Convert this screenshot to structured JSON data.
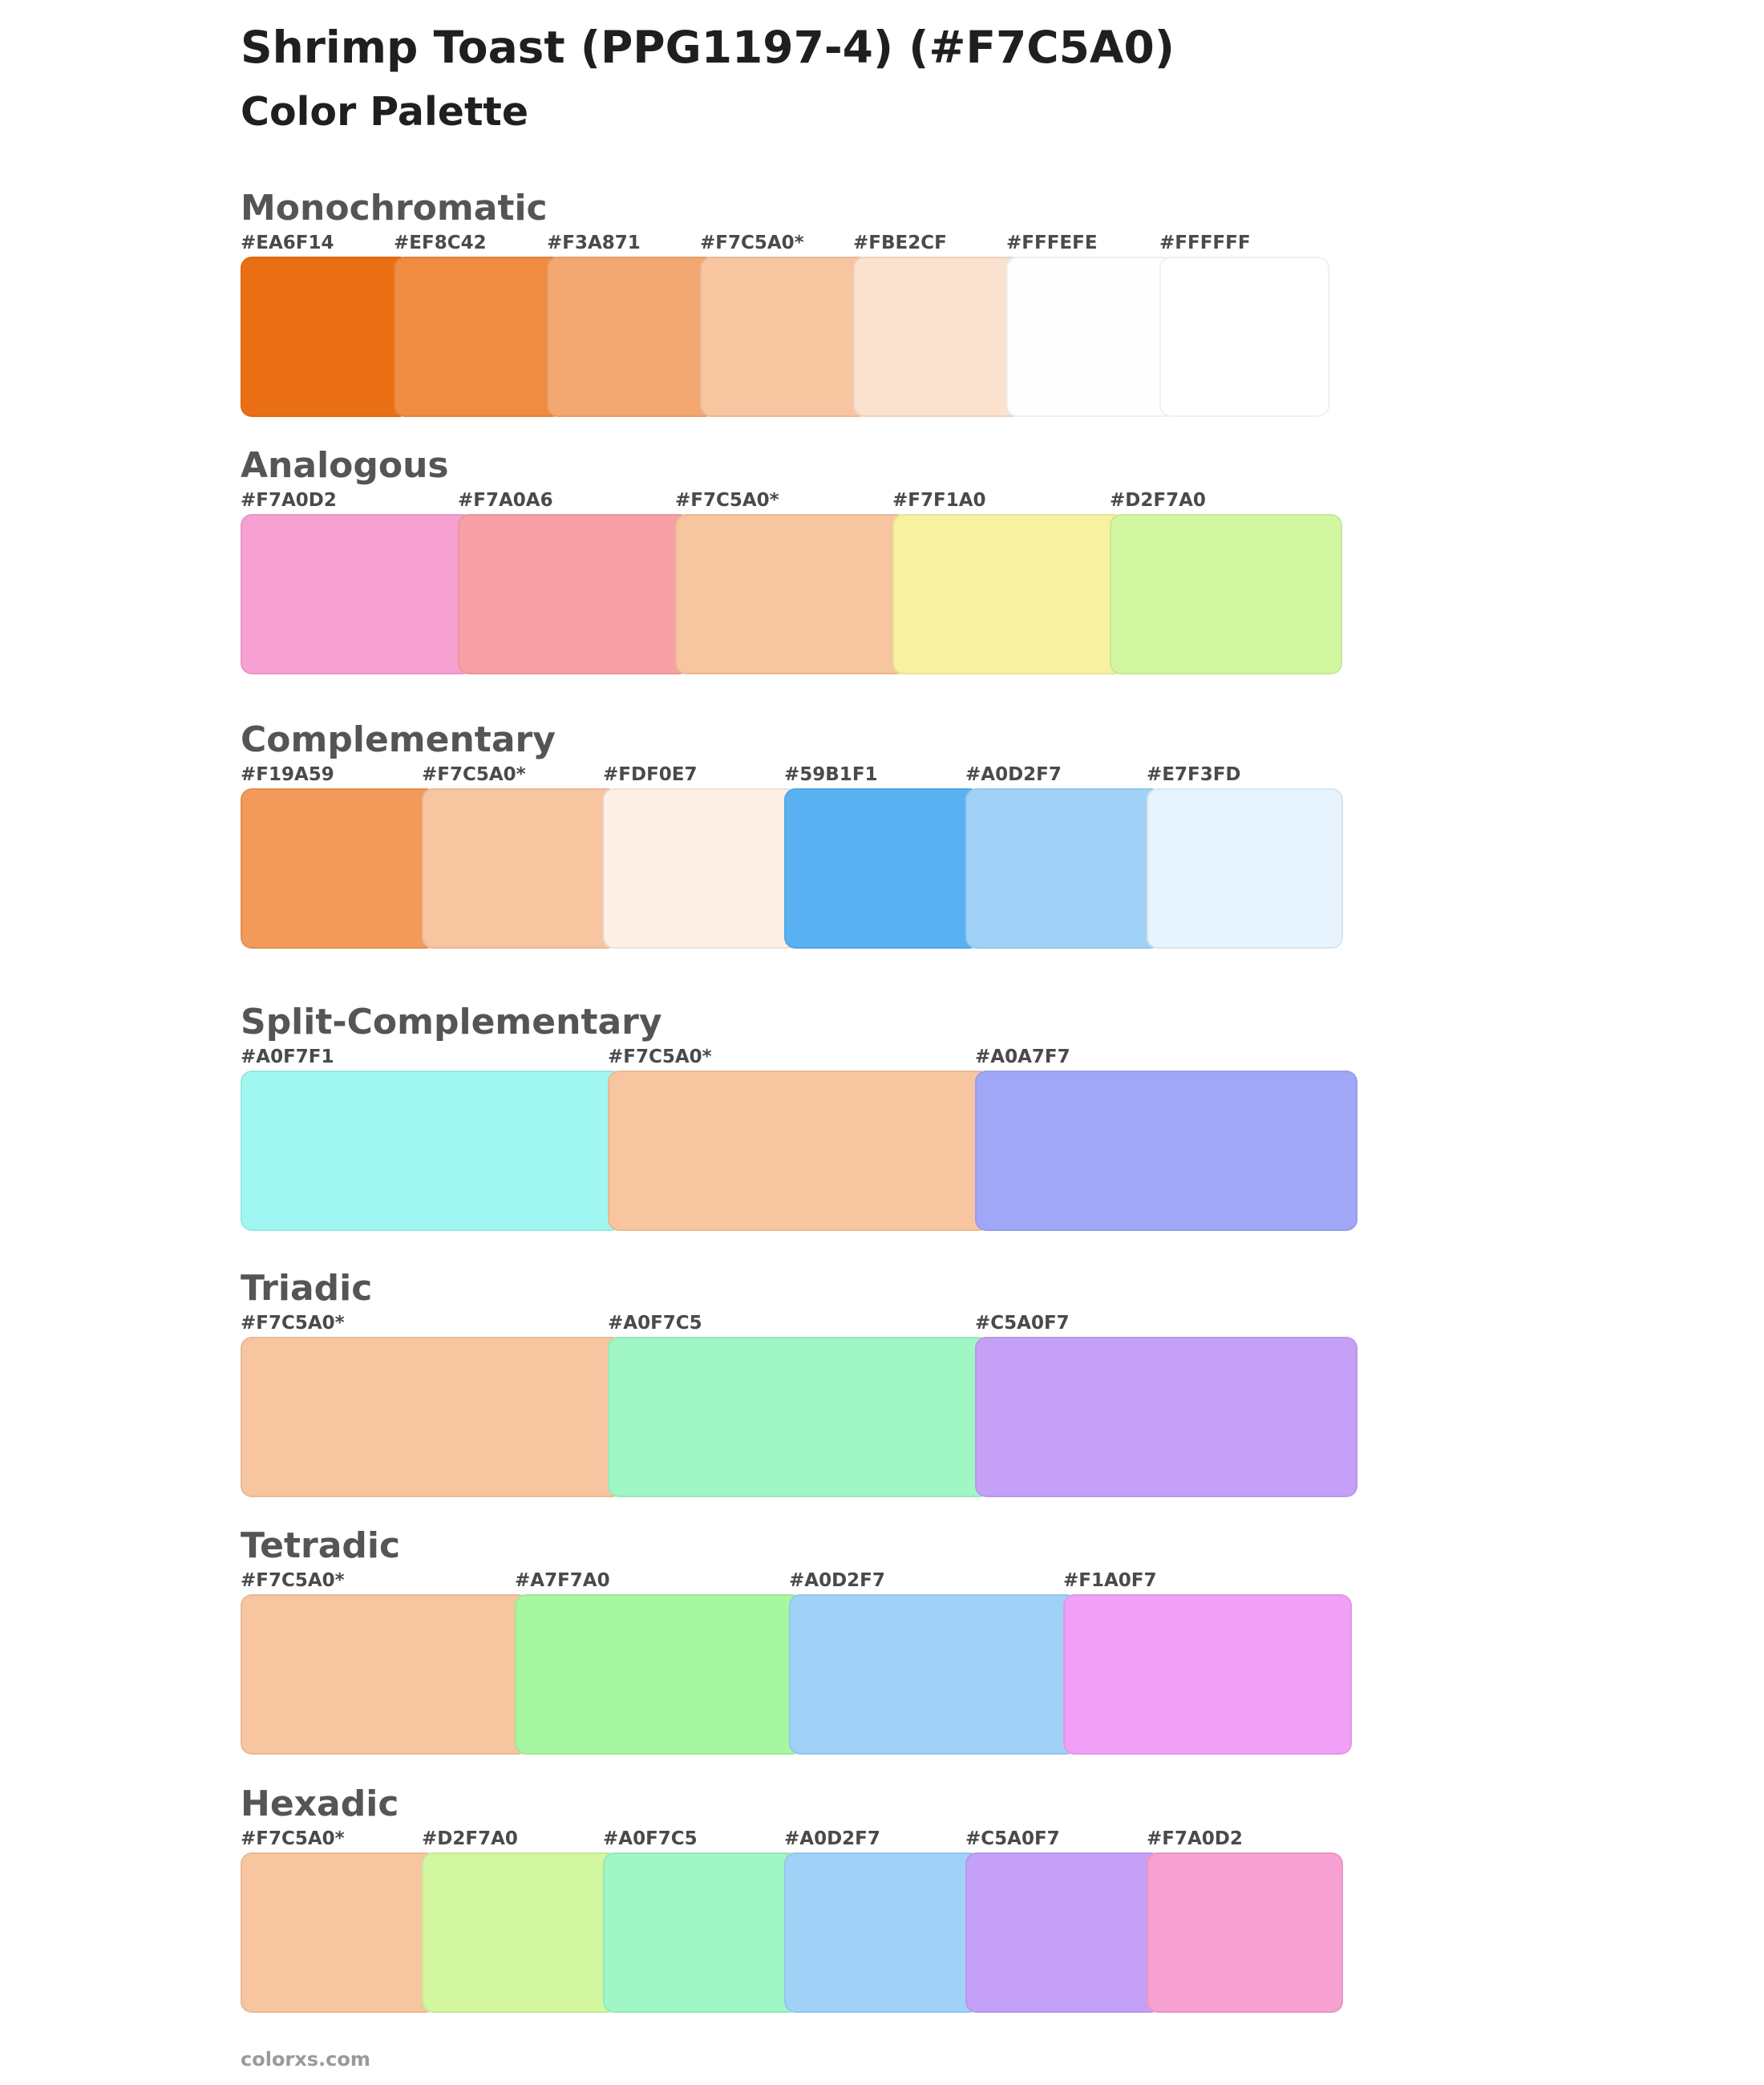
{
  "title": "Shrimp Toast (PPG1197-4) (#F7C5A0)",
  "subtitle": "Color Palette",
  "sections": [
    {
      "name": "Monochromatic",
      "slug": "monochromatic",
      "colors": [
        {
          "label": "#EA6F14",
          "hex": "#EA6F14"
        },
        {
          "label": "#EF8C42",
          "hex": "#EF8C42"
        },
        {
          "label": "#F3A871",
          "hex": "#F3A871"
        },
        {
          "label": "#F7C5A0*",
          "hex": "#F7C5A0"
        },
        {
          "label": "#FBE2CF",
          "hex": "#FBE2CF"
        },
        {
          "label": "#FFFEFE",
          "hex": "#FFFEFE"
        },
        {
          "label": "#FFFFFF",
          "hex": "#FFFFFF"
        }
      ]
    },
    {
      "name": "Analogous",
      "slug": "analogous",
      "colors": [
        {
          "label": "#F7A0D2",
          "hex": "#F7A0D2"
        },
        {
          "label": "#F7A0A6",
          "hex": "#F7A0A6"
        },
        {
          "label": "#F7C5A0*",
          "hex": "#F7C5A0"
        },
        {
          "label": "#F7F1A0",
          "hex": "#F7F1A0"
        },
        {
          "label": "#D2F7A0",
          "hex": "#D2F7A0"
        }
      ]
    },
    {
      "name": "Complementary",
      "slug": "complementary",
      "colors": [
        {
          "label": "#F19A59",
          "hex": "#F19A59"
        },
        {
          "label": "#F7C5A0*",
          "hex": "#F7C5A0"
        },
        {
          "label": "#FDF0E7",
          "hex": "#FDF0E7"
        },
        {
          "label": "#59B1F1",
          "hex": "#59B1F1"
        },
        {
          "label": "#A0D2F7",
          "hex": "#A0D2F7"
        },
        {
          "label": "#E7F3FD",
          "hex": "#E7F3FD"
        }
      ]
    },
    {
      "name": "Split-Complementary",
      "slug": "split-complementary",
      "colors": [
        {
          "label": "#A0F7F1",
          "hex": "#A0F7F1"
        },
        {
          "label": "#F7C5A0*",
          "hex": "#F7C5A0"
        },
        {
          "label": "#A0A7F7",
          "hex": "#A0A7F7"
        }
      ]
    },
    {
      "name": "Triadic",
      "slug": "triadic",
      "colors": [
        {
          "label": "#F7C5A0*",
          "hex": "#F7C5A0"
        },
        {
          "label": "#A0F7C5",
          "hex": "#A0F7C5"
        },
        {
          "label": "#C5A0F7",
          "hex": "#C5A0F7"
        }
      ]
    },
    {
      "name": "Tetradic",
      "slug": "tetradic",
      "colors": [
        {
          "label": "#F7C5A0*",
          "hex": "#F7C5A0"
        },
        {
          "label": "#A7F7A0",
          "hex": "#A7F7A0"
        },
        {
          "label": "#A0D2F7",
          "hex": "#A0D2F7"
        },
        {
          "label": "#F1A0F7",
          "hex": "#F1A0F7"
        }
      ]
    },
    {
      "name": "Hexadic",
      "slug": "hexadic",
      "colors": [
        {
          "label": "#F7C5A0*",
          "hex": "#F7C5A0"
        },
        {
          "label": "#D2F7A0",
          "hex": "#D2F7A0"
        },
        {
          "label": "#A0F7C5",
          "hex": "#A0F7C5"
        },
        {
          "label": "#A0D2F7",
          "hex": "#A0D2F7"
        },
        {
          "label": "#C5A0F7",
          "hex": "#C5A0F7"
        },
        {
          "label": "#F7A0D2",
          "hex": "#F7A0D2"
        }
      ]
    }
  ],
  "footer": "colorxs.com"
}
